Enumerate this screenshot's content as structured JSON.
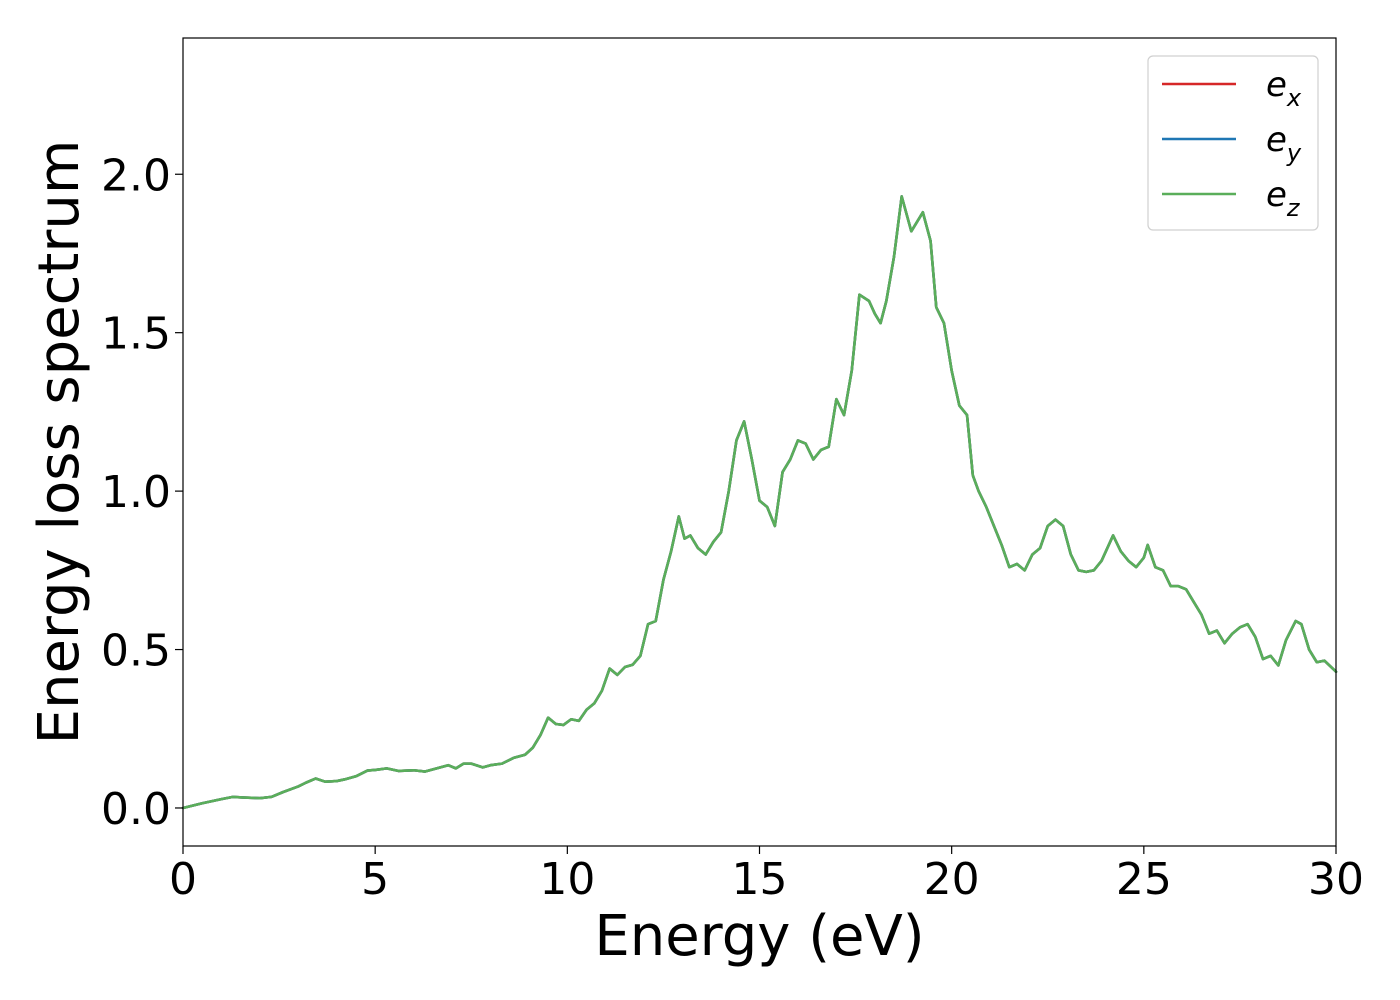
{
  "chart_data": {
    "type": "line",
    "title": "",
    "xlabel": "Energy (eV)",
    "ylabel": "Energy loss spectrum",
    "xlim": [
      0,
      30
    ],
    "ylim": [
      -0.12,
      2.43
    ],
    "xticks": [
      0,
      5,
      10,
      15,
      20,
      25,
      30
    ],
    "xtick_labels": [
      "0",
      "5",
      "10",
      "15",
      "20",
      "25",
      "30"
    ],
    "yticks": [
      0.0,
      0.5,
      1.0,
      1.5,
      2.0
    ],
    "ytick_labels": [
      "0.0",
      "0.5",
      "1.0",
      "1.5",
      "2.0"
    ],
    "grid": false,
    "legend_position": "top-right",
    "x": [
      0,
      0.5,
      1.0,
      1.3,
      1.6,
      2.0,
      2.3,
      2.6,
      3.0,
      3.2,
      3.45,
      3.7,
      4.0,
      4.2,
      4.5,
      4.8,
      5.0,
      5.3,
      5.6,
      6.0,
      6.3,
      6.6,
      6.9,
      7.1,
      7.3,
      7.5,
      7.8,
      8.0,
      8.3,
      8.6,
      8.9,
      9.1,
      9.3,
      9.5,
      9.7,
      9.9,
      10.1,
      10.3,
      10.5,
      10.7,
      10.9,
      11.1,
      11.3,
      11.5,
      11.7,
      11.9,
      12.1,
      12.3,
      12.5,
      12.7,
      12.9,
      13.05,
      13.2,
      13.4,
      13.6,
      13.8,
      14.0,
      14.2,
      14.4,
      14.6,
      14.8,
      15.0,
      15.2,
      15.4,
      15.6,
      15.8,
      16.0,
      16.2,
      16.4,
      16.6,
      16.8,
      17.0,
      17.2,
      17.4,
      17.6,
      17.85,
      18.0,
      18.15,
      18.3,
      18.5,
      18.7,
      18.95,
      19.1,
      19.25,
      19.45,
      19.6,
      19.8,
      20.0,
      20.2,
      20.4,
      20.55,
      20.7,
      20.9,
      21.1,
      21.3,
      21.5,
      21.7,
      21.9,
      22.1,
      22.3,
      22.5,
      22.7,
      22.9,
      23.1,
      23.3,
      23.5,
      23.7,
      23.9,
      24.2,
      24.4,
      24.6,
      24.8,
      25.0,
      25.1,
      25.3,
      25.5,
      25.7,
      25.9,
      26.1,
      26.3,
      26.5,
      26.7,
      26.9,
      27.1,
      27.3,
      27.5,
      27.7,
      27.9,
      28.1,
      28.3,
      28.5,
      28.7,
      28.95,
      29.1,
      29.3,
      29.5,
      29.7,
      30.0
    ],
    "series": [
      {
        "name": "e_x",
        "label_base": "e",
        "label_sub": "x",
        "color": "#d62728",
        "values": [
          0.0,
          0.015,
          0.028,
          0.035,
          0.033,
          0.031,
          0.035,
          0.05,
          0.068,
          0.08,
          0.093,
          0.083,
          0.085,
          0.09,
          0.1,
          0.118,
          0.12,
          0.125,
          0.117,
          0.119,
          0.115,
          0.125,
          0.135,
          0.125,
          0.14,
          0.14,
          0.128,
          0.135,
          0.14,
          0.158,
          0.168,
          0.19,
          0.23,
          0.285,
          0.265,
          0.262,
          0.28,
          0.275,
          0.31,
          0.33,
          0.37,
          0.44,
          0.42,
          0.445,
          0.452,
          0.48,
          0.58,
          0.59,
          0.72,
          0.81,
          0.92,
          0.85,
          0.86,
          0.82,
          0.8,
          0.84,
          0.87,
          1.0,
          1.16,
          1.22,
          1.1,
          0.97,
          0.95,
          0.89,
          1.06,
          1.1,
          1.16,
          1.15,
          1.1,
          1.13,
          1.14,
          1.29,
          1.24,
          1.38,
          1.62,
          1.6,
          1.56,
          1.53,
          1.6,
          1.74,
          1.93,
          1.82,
          1.85,
          1.88,
          1.79,
          1.58,
          1.53,
          1.38,
          1.27,
          1.24,
          1.05,
          1.0,
          0.95,
          0.89,
          0.83,
          0.76,
          0.77,
          0.75,
          0.8,
          0.82,
          0.89,
          0.91,
          0.89,
          0.8,
          0.75,
          0.745,
          0.75,
          0.78,
          0.86,
          0.81,
          0.78,
          0.76,
          0.79,
          0.83,
          0.76,
          0.75,
          0.7,
          0.7,
          0.69,
          0.65,
          0.61,
          0.55,
          0.56,
          0.52,
          0.55,
          0.57,
          0.58,
          0.54,
          0.47,
          0.48,
          0.45,
          0.53,
          0.59,
          0.58,
          0.5,
          0.46,
          0.465,
          0.43
        ]
      },
      {
        "name": "e_y",
        "label_base": "e",
        "label_sub": "y",
        "color": "#1f77b4",
        "values": [
          0.0,
          0.015,
          0.028,
          0.035,
          0.033,
          0.031,
          0.035,
          0.05,
          0.068,
          0.08,
          0.093,
          0.083,
          0.085,
          0.09,
          0.1,
          0.118,
          0.12,
          0.125,
          0.117,
          0.119,
          0.115,
          0.125,
          0.135,
          0.125,
          0.14,
          0.14,
          0.128,
          0.135,
          0.14,
          0.158,
          0.168,
          0.19,
          0.23,
          0.285,
          0.265,
          0.262,
          0.28,
          0.275,
          0.31,
          0.33,
          0.37,
          0.44,
          0.42,
          0.445,
          0.452,
          0.48,
          0.58,
          0.59,
          0.72,
          0.81,
          0.92,
          0.85,
          0.86,
          0.82,
          0.8,
          0.84,
          0.87,
          1.0,
          1.16,
          1.22,
          1.1,
          0.97,
          0.95,
          0.89,
          1.06,
          1.1,
          1.16,
          1.15,
          1.1,
          1.13,
          1.14,
          1.29,
          1.24,
          1.38,
          1.62,
          1.6,
          1.56,
          1.53,
          1.6,
          1.74,
          1.93,
          1.82,
          1.85,
          1.88,
          1.79,
          1.58,
          1.53,
          1.38,
          1.27,
          1.24,
          1.05,
          1.0,
          0.95,
          0.89,
          0.83,
          0.76,
          0.77,
          0.75,
          0.8,
          0.82,
          0.89,
          0.91,
          0.89,
          0.8,
          0.75,
          0.745,
          0.75,
          0.78,
          0.86,
          0.81,
          0.78,
          0.76,
          0.79,
          0.83,
          0.76,
          0.75,
          0.7,
          0.7,
          0.69,
          0.65,
          0.61,
          0.55,
          0.56,
          0.52,
          0.55,
          0.57,
          0.58,
          0.54,
          0.47,
          0.48,
          0.45,
          0.53,
          0.59,
          0.58,
          0.5,
          0.46,
          0.465,
          0.43
        ]
      },
      {
        "name": "e_z",
        "label_base": "e",
        "label_sub": "z",
        "color": "#5aae5a",
        "values": [
          0.0,
          0.015,
          0.028,
          0.035,
          0.033,
          0.031,
          0.035,
          0.05,
          0.068,
          0.08,
          0.093,
          0.083,
          0.085,
          0.09,
          0.1,
          0.118,
          0.12,
          0.125,
          0.117,
          0.119,
          0.115,
          0.125,
          0.135,
          0.125,
          0.14,
          0.14,
          0.128,
          0.135,
          0.14,
          0.158,
          0.168,
          0.19,
          0.23,
          0.285,
          0.265,
          0.262,
          0.28,
          0.275,
          0.31,
          0.33,
          0.37,
          0.44,
          0.42,
          0.445,
          0.452,
          0.48,
          0.58,
          0.59,
          0.72,
          0.81,
          0.92,
          0.85,
          0.86,
          0.82,
          0.8,
          0.84,
          0.87,
          1.0,
          1.16,
          1.22,
          1.1,
          0.97,
          0.95,
          0.89,
          1.06,
          1.1,
          1.16,
          1.15,
          1.1,
          1.13,
          1.14,
          1.29,
          1.24,
          1.38,
          1.62,
          1.6,
          1.56,
          1.53,
          1.6,
          1.74,
          1.93,
          1.82,
          1.85,
          1.88,
          1.79,
          1.58,
          1.53,
          1.38,
          1.27,
          1.24,
          1.05,
          1.0,
          0.95,
          0.89,
          0.83,
          0.76,
          0.77,
          0.75,
          0.8,
          0.82,
          0.89,
          0.91,
          0.89,
          0.8,
          0.75,
          0.745,
          0.75,
          0.78,
          0.86,
          0.81,
          0.78,
          0.76,
          0.79,
          0.83,
          0.76,
          0.75,
          0.7,
          0.7,
          0.69,
          0.65,
          0.61,
          0.55,
          0.56,
          0.52,
          0.55,
          0.57,
          0.58,
          0.54,
          0.47,
          0.48,
          0.45,
          0.53,
          0.59,
          0.58,
          0.5,
          0.46,
          0.465,
          0.43
        ]
      }
    ]
  }
}
